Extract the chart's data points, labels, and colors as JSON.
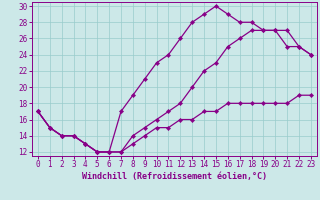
{
  "xlabel": "Windchill (Refroidissement éolien,°C)",
  "bg_color": "#cce8e8",
  "line_color": "#880088",
  "grid_color": "#99cccc",
  "xlim": [
    -0.5,
    23.5
  ],
  "ylim": [
    11.5,
    30.5
  ],
  "xticks": [
    0,
    1,
    2,
    3,
    4,
    5,
    6,
    7,
    8,
    9,
    10,
    11,
    12,
    13,
    14,
    15,
    16,
    17,
    18,
    19,
    20,
    21,
    22,
    23
  ],
  "yticks": [
    12,
    14,
    16,
    18,
    20,
    22,
    24,
    26,
    28,
    30
  ],
  "line1_x": [
    0,
    1,
    2,
    3,
    4,
    5,
    6,
    7,
    8,
    9,
    10,
    11,
    12,
    13,
    14,
    15,
    16,
    17,
    18,
    19,
    20,
    21,
    22,
    23
  ],
  "line1_y": [
    17,
    15,
    14,
    14,
    13,
    12,
    12,
    12,
    13,
    14,
    15,
    15,
    16,
    16,
    17,
    17,
    18,
    18,
    18,
    18,
    18,
    18,
    19,
    19
  ],
  "line2_x": [
    0,
    1,
    2,
    3,
    4,
    5,
    6,
    7,
    8,
    9,
    10,
    11,
    12,
    13,
    14,
    15,
    16,
    17,
    18,
    19,
    20,
    21,
    22,
    23
  ],
  "line2_y": [
    17,
    15,
    14,
    14,
    13,
    12,
    12,
    17,
    19,
    21,
    23,
    24,
    26,
    28,
    29,
    30,
    29,
    28,
    28,
    27,
    27,
    25,
    25,
    24
  ],
  "line3_x": [
    0,
    1,
    2,
    3,
    4,
    5,
    6,
    7,
    8,
    9,
    10,
    11,
    12,
    13,
    14,
    15,
    16,
    17,
    18,
    19,
    20,
    21,
    22,
    23
  ],
  "line3_y": [
    17,
    15,
    14,
    14,
    13,
    12,
    12,
    12,
    14,
    15,
    16,
    17,
    18,
    20,
    22,
    23,
    25,
    26,
    27,
    27,
    27,
    27,
    25,
    24
  ],
  "marker": "D",
  "markersize": 2.2,
  "linewidth": 0.9,
  "tick_fontsize": 5.5,
  "xlabel_fontsize": 6.0
}
